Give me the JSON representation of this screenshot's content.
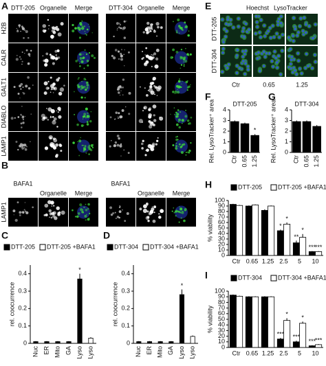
{
  "panel_A": {
    "label": "A",
    "groups": [
      {
        "name": "DTT-205",
        "columns": [
          "Organelle",
          "Merge"
        ]
      },
      {
        "name": "DTT-304",
        "columns": [
          "Organelle",
          "Merge"
        ]
      }
    ],
    "rows": [
      "H2B",
      "CALR",
      "GALT1",
      "DIABLO",
      "LAMP1"
    ]
  },
  "panel_B": {
    "label": "B",
    "groups": [
      {
        "name": "BAFA1",
        "columns": [
          "Organelle",
          "Merge"
        ]
      },
      {
        "name": "BAFA1",
        "columns": [
          "Organelle",
          "Merge"
        ]
      }
    ],
    "rows": [
      "LAMP1"
    ]
  },
  "panel_E": {
    "label": "E",
    "stains": [
      {
        "name": "Hoechst",
        "color": "#3355dd"
      },
      {
        "name": "LysoTracker",
        "color": "#33aa33"
      }
    ],
    "rows": [
      "DTT-205",
      "DTT-304"
    ],
    "columns": [
      "Ctr",
      "0.65",
      "1.25"
    ]
  },
  "chart_data": [
    {
      "type": "bar",
      "panel_label": "C",
      "ylabel": "rel. coocurrence",
      "categories": [
        "Nuc",
        "ER",
        "Mito",
        "GA",
        "Lyso",
        "Lyso"
      ],
      "rotated_labels": true,
      "series": [
        {
          "name": "DTT-205",
          "color": "#000000",
          "values": [
            0.01,
            0.01,
            0.01,
            0.01,
            0.37,
            null
          ],
          "errors": [
            0.003,
            0.003,
            0.003,
            0.003,
            0.03,
            null
          ],
          "stars": [
            null,
            null,
            null,
            null,
            "*",
            null
          ]
        },
        {
          "name": "DTT-205 +BAFA1",
          "color": "#ffffff",
          "values": [
            null,
            null,
            null,
            null,
            null,
            0.03
          ],
          "errors": [
            null,
            null,
            null,
            null,
            null,
            0.005
          ],
          "stars": [
            null,
            null,
            null,
            null,
            null,
            null
          ]
        }
      ],
      "ylim": [
        0,
        0.45
      ],
      "yticks": [
        0,
        0.1,
        0.2,
        0.3,
        0.4
      ]
    },
    {
      "type": "bar",
      "panel_label": "D",
      "ylabel": "rel. coocurrence",
      "categories": [
        "Nuc",
        "ER",
        "Mito",
        "GA",
        "Lyso",
        "Lyso"
      ],
      "rotated_labels": true,
      "series": [
        {
          "name": "DTT-304",
          "color": "#000000",
          "values": [
            0.01,
            0.01,
            0.01,
            0.01,
            0.28,
            null
          ],
          "errors": [
            0.003,
            0.003,
            0.003,
            0.003,
            0.03,
            null
          ],
          "stars": [
            null,
            null,
            null,
            null,
            "*",
            null
          ]
        },
        {
          "name": "DTT-304 +BAFA1",
          "color": "#ffffff",
          "values": [
            null,
            null,
            null,
            null,
            null,
            0.04
          ],
          "errors": [
            null,
            null,
            null,
            null,
            null,
            0.005
          ],
          "stars": [
            null,
            null,
            null,
            null,
            null,
            null
          ]
        }
      ],
      "ylim": [
        0,
        0.45
      ],
      "yticks": [
        0,
        0.1,
        0.2,
        0.3,
        0.4
      ]
    },
    {
      "type": "bar",
      "panel_label": "F",
      "title": "DTT-205",
      "ylabel": "Rel. LysoTracker⁺ area",
      "categories": [
        "Ctr",
        "0.65",
        "1.25"
      ],
      "rotated_labels": true,
      "series": [
        {
          "color": "#000000",
          "values": [
            2.9,
            2.7,
            1.6
          ],
          "errors": [
            0.1,
            0.1,
            0.12
          ],
          "stars": [
            null,
            null,
            "*"
          ]
        }
      ],
      "ylim": [
        0,
        4
      ],
      "yticks": [
        0,
        1,
        2,
        3,
        4
      ]
    },
    {
      "type": "bar",
      "panel_label": "G",
      "title": "DTT-304",
      "ylabel": "Rel. LysoTracker⁺ area",
      "categories": [
        "Ctr",
        "0.65",
        "1.25"
      ],
      "rotated_labels": true,
      "series": [
        {
          "color": "#000000",
          "values": [
            2.9,
            2.9,
            2.45
          ],
          "errors": [
            0.1,
            0.1,
            0.12
          ],
          "stars": [
            null,
            null,
            null
          ]
        }
      ],
      "ylim": [
        0,
        4
      ],
      "yticks": [
        0,
        1,
        2,
        3,
        4
      ]
    },
    {
      "type": "bar",
      "panel_label": "H",
      "ylabel": "% viability",
      "categories": [
        "Ctr",
        "0.65",
        "1.25",
        "2.5",
        "5",
        "10"
      ],
      "rotated_labels": false,
      "series": [
        {
          "name": "DTT-205",
          "color": "#000000",
          "values": [
            93,
            90,
            82,
            45,
            23,
            7
          ],
          "errors": [
            1,
            1,
            2,
            2,
            4,
            1
          ],
          "stars": [
            null,
            null,
            null,
            "*",
            "**",
            "***"
          ]
        },
        {
          "name": "DTT-205 +BAFA1",
          "color": "#ffffff",
          "values": [
            91,
            92,
            90,
            57,
            33,
            7
          ],
          "errors": [
            1,
            1,
            1,
            3,
            6,
            1
          ],
          "stars": [
            null,
            null,
            null,
            "*",
            "*",
            "***"
          ]
        }
      ],
      "ylim": [
        0,
        100
      ],
      "yticks": [
        0,
        10,
        20,
        30,
        40,
        50,
        60,
        70,
        80,
        90,
        100
      ]
    },
    {
      "type": "bar",
      "panel_label": "I",
      "ylabel": "% viability",
      "categories": [
        "Ctr",
        "0.65",
        "1.25",
        "2.5",
        "5",
        "10"
      ],
      "rotated_labels": false,
      "series": [
        {
          "name": "DTT-304",
          "color": "#000000",
          "values": [
            93,
            90,
            90,
            15,
            10,
            3
          ],
          "errors": [
            1,
            1,
            1,
            2,
            2,
            1
          ],
          "stars": [
            null,
            null,
            null,
            "***",
            "***",
            "***"
          ]
        },
        {
          "name": "DTT-304 +BAFA1",
          "color": "#ffffff",
          "values": [
            91,
            90,
            90,
            48,
            43,
            5
          ],
          "errors": [
            1,
            1,
            1,
            4,
            3,
            1
          ],
          "stars": [
            null,
            null,
            null,
            "*",
            "*",
            "***"
          ]
        }
      ],
      "ylim": [
        0,
        100
      ],
      "yticks": [
        0,
        10,
        20,
        30,
        40,
        50,
        60,
        70,
        80,
        90,
        100
      ]
    }
  ]
}
